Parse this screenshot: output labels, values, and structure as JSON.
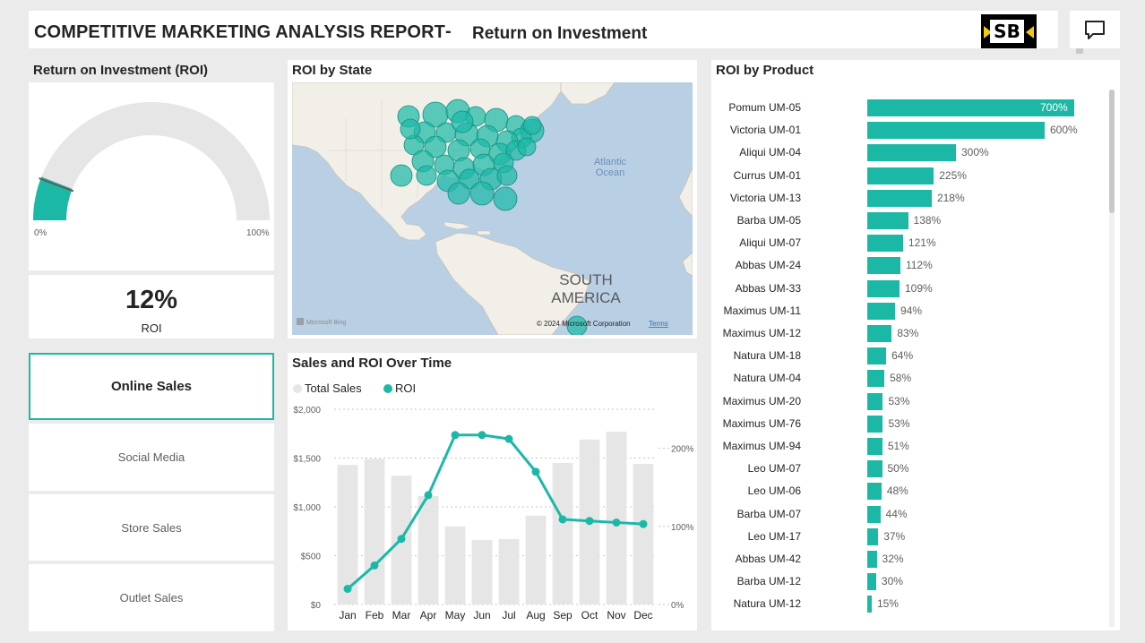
{
  "header": {
    "title": "COMPETITIVE MARKETING ANALYSIS REPORT",
    "separator": "-",
    "subtitle": "Return on Investment",
    "logo_text": "SB",
    "comment_icon": "comment-icon"
  },
  "gauge": {
    "title": "Return on Investment (ROI)",
    "value": 0.12,
    "min_label": "0%",
    "max_label": "100%",
    "track_color": "#e6e6e6",
    "fill_color": "#1cb8a6",
    "target_marker_color": "#605e5c"
  },
  "kpi": {
    "value": "12%",
    "label": "ROI"
  },
  "slicer": {
    "selected": "Online Sales",
    "options": [
      "Online Sales",
      "Social Media",
      "Store Sales",
      "Outlet Sales"
    ]
  },
  "map": {
    "title": "ROI by State",
    "ocean_label_1": "Atlantic",
    "ocean_label_2": "Ocean",
    "continent_label_1": "SOUTH",
    "continent_label_2": "AMERICA",
    "bing_label": "Microsoft Bing",
    "copyright": "© 2024 Microsoft Corporation",
    "terms": "Terms",
    "bubble_color": "#1cb8a6",
    "water_color": "#b9cfe4",
    "land_color": "#f2efe9"
  },
  "line_chart": {
    "title": "Sales and ROI Over Time",
    "legend": [
      {
        "name": "Total Sales",
        "color": "#e6e6e6"
      },
      {
        "name": "ROI",
        "color": "#1cb8a6"
      }
    ],
    "y_left_ticks": [
      "$2,000",
      "$1,500",
      "$1,000",
      "$500",
      "$0"
    ],
    "y_right_ticks": [
      "200%",
      "100%",
      "0%"
    ]
  },
  "chart_data": [
    {
      "type": "bar+line",
      "title": "Sales and ROI Over Time",
      "categories": [
        "Jan",
        "Feb",
        "Mar",
        "Apr",
        "May",
        "Jun",
        "Jul",
        "Aug",
        "Sep",
        "Oct",
        "Nov",
        "Dec"
      ],
      "series": [
        {
          "name": "Total Sales",
          "axis": "left",
          "type": "bar",
          "values": [
            1430,
            1490,
            1320,
            1110,
            800,
            660,
            670,
            910,
            1450,
            1690,
            1770,
            1440
          ]
        },
        {
          "name": "ROI",
          "axis": "right",
          "type": "line",
          "values": [
            20,
            50,
            84,
            140,
            217,
            217,
            212,
            170,
            109,
            107,
            105,
            103
          ]
        }
      ],
      "ylim_left": [
        0,
        2000
      ],
      "ylim_right": [
        0,
        250
      ]
    },
    {
      "type": "bar",
      "orientation": "horizontal",
      "title": "ROI by Product",
      "categories": [
        "Pomum UM-05",
        "Victoria UM-01",
        "Aliqui UM-04",
        "Currus UM-01",
        "Victoria UM-13",
        "Barba UM-05",
        "Aliqui UM-07",
        "Abbas UM-24",
        "Abbas UM-33",
        "Maximus UM-11",
        "Maximus UM-12",
        "Natura UM-18",
        "Natura UM-04",
        "Maximus UM-20",
        "Maximus UM-76",
        "Maximus UM-94",
        "Leo UM-07",
        "Leo UM-06",
        "Barba UM-07",
        "Leo UM-17",
        "Abbas UM-42",
        "Barba UM-12",
        "Natura UM-12"
      ],
      "values": [
        700,
        600,
        300,
        225,
        218,
        138,
        121,
        112,
        109,
        94,
        83,
        64,
        58,
        53,
        53,
        51,
        50,
        48,
        44,
        37,
        32,
        30,
        15
      ],
      "labels": [
        "700%",
        "600%",
        "300%",
        "225%",
        "218%",
        "138%",
        "121%",
        "112%",
        "109%",
        "94%",
        "83%",
        "64%",
        "58%",
        "53%",
        "53%",
        "51%",
        "50%",
        "48%",
        "44%",
        "37%",
        "32%",
        "30%",
        "15%"
      ]
    }
  ]
}
